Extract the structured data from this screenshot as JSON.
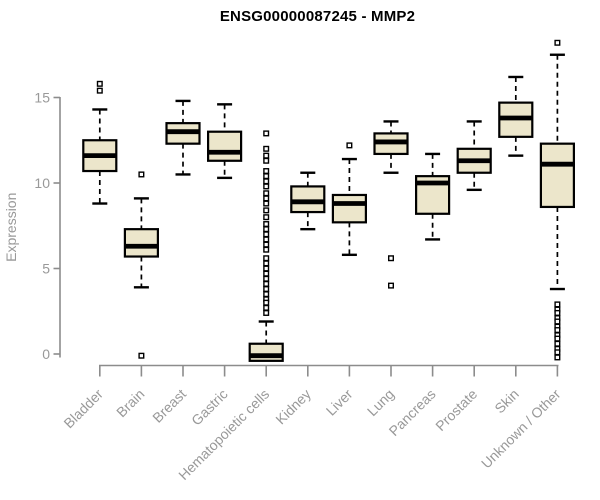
{
  "title": "ENSG00000087245 - MMP2",
  "chart_data": {
    "type": "boxplot",
    "title": "ENSG00000087245 - MMP2",
    "xlabel": "",
    "ylabel": "Expression",
    "yticks": [
      0,
      5,
      10,
      15
    ],
    "ylim": [
      -0.6,
      18.5
    ],
    "grid": false,
    "legend": "none",
    "categories": [
      "Bladder",
      "Brain",
      "Breast",
      "Gastric",
      "Hematopoietic cells",
      "Kidney",
      "Liver",
      "Lung",
      "Pancreas",
      "Prostate",
      "Skin",
      "Unknown / Other"
    ],
    "series": [
      {
        "name": "Bladder",
        "whisker_low": 8.8,
        "q1": 10.7,
        "median": 11.6,
        "q3": 12.5,
        "whisker_high": 14.3,
        "outliers": [
          15.4,
          15.8
        ]
      },
      {
        "name": "Brain",
        "whisker_low": 3.9,
        "q1": 5.7,
        "median": 6.3,
        "q3": 7.3,
        "whisker_high": 9.1,
        "outliers": [
          10.5,
          -0.1
        ]
      },
      {
        "name": "Breast",
        "whisker_low": 10.5,
        "q1": 12.3,
        "median": 13.0,
        "q3": 13.5,
        "whisker_high": 14.8,
        "outliers": []
      },
      {
        "name": "Gastric",
        "whisker_low": 10.3,
        "q1": 11.3,
        "median": 11.8,
        "q3": 13.0,
        "whisker_high": 14.6,
        "outliers": []
      },
      {
        "name": "Hematopoietic cells",
        "whisker_low": -0.4,
        "q1": -0.4,
        "median": -0.1,
        "q3": 0.6,
        "whisker_high": 1.9,
        "outliers": [
          12.9,
          12.0,
          11.6,
          11.3,
          10.7,
          10.4,
          10.1,
          9.8,
          9.4,
          9.1,
          8.8,
          8.4,
          8.0,
          7.6,
          7.3,
          7.0,
          6.7,
          6.4,
          6.1,
          5.6,
          5.3,
          5.0,
          4.7,
          4.4,
          4.1,
          3.8,
          3.5,
          3.2,
          3.0,
          2.7,
          2.4
        ]
      },
      {
        "name": "Kidney",
        "whisker_low": 7.3,
        "q1": 8.3,
        "median": 8.9,
        "q3": 9.8,
        "whisker_high": 10.6,
        "outliers": []
      },
      {
        "name": "Liver",
        "whisker_low": 5.8,
        "q1": 7.7,
        "median": 8.8,
        "q3": 9.3,
        "whisker_high": 11.4,
        "outliers": [
          12.2
        ]
      },
      {
        "name": "Lung",
        "whisker_low": 10.6,
        "q1": 11.7,
        "median": 12.4,
        "q3": 12.9,
        "whisker_high": 13.6,
        "outliers": [
          5.6,
          4.0
        ]
      },
      {
        "name": "Pancreas",
        "whisker_low": 6.7,
        "q1": 8.2,
        "median": 10.0,
        "q3": 10.4,
        "whisker_high": 11.7,
        "outliers": []
      },
      {
        "name": "Prostate",
        "whisker_low": 9.6,
        "q1": 10.6,
        "median": 11.3,
        "q3": 12.0,
        "whisker_high": 13.6,
        "outliers": []
      },
      {
        "name": "Skin",
        "whisker_low": 11.6,
        "q1": 12.7,
        "median": 13.8,
        "q3": 14.7,
        "whisker_high": 16.2,
        "outliers": []
      },
      {
        "name": "Unknown / Other",
        "whisker_low": 3.8,
        "q1": 8.6,
        "median": 11.1,
        "q3": 12.3,
        "whisker_high": 17.5,
        "outliers": [
          18.2,
          2.9,
          2.6,
          2.4,
          2.1,
          1.9,
          1.6,
          1.4,
          1.1,
          0.9,
          0.6,
          0.3,
          0.1,
          -0.2
        ]
      }
    ],
    "colors": {
      "box_fill": "#ECE6CB",
      "box_stroke": "#000000",
      "median": "#000000",
      "whisker": "#000000",
      "outlier_stroke": "#000000",
      "outlier_fill": "#ffffff",
      "axis_line": "#8c8c8c",
      "tick_label": "#999999",
      "axis_label": "#999999",
      "title": "#000000",
      "background": "#ffffff"
    }
  }
}
